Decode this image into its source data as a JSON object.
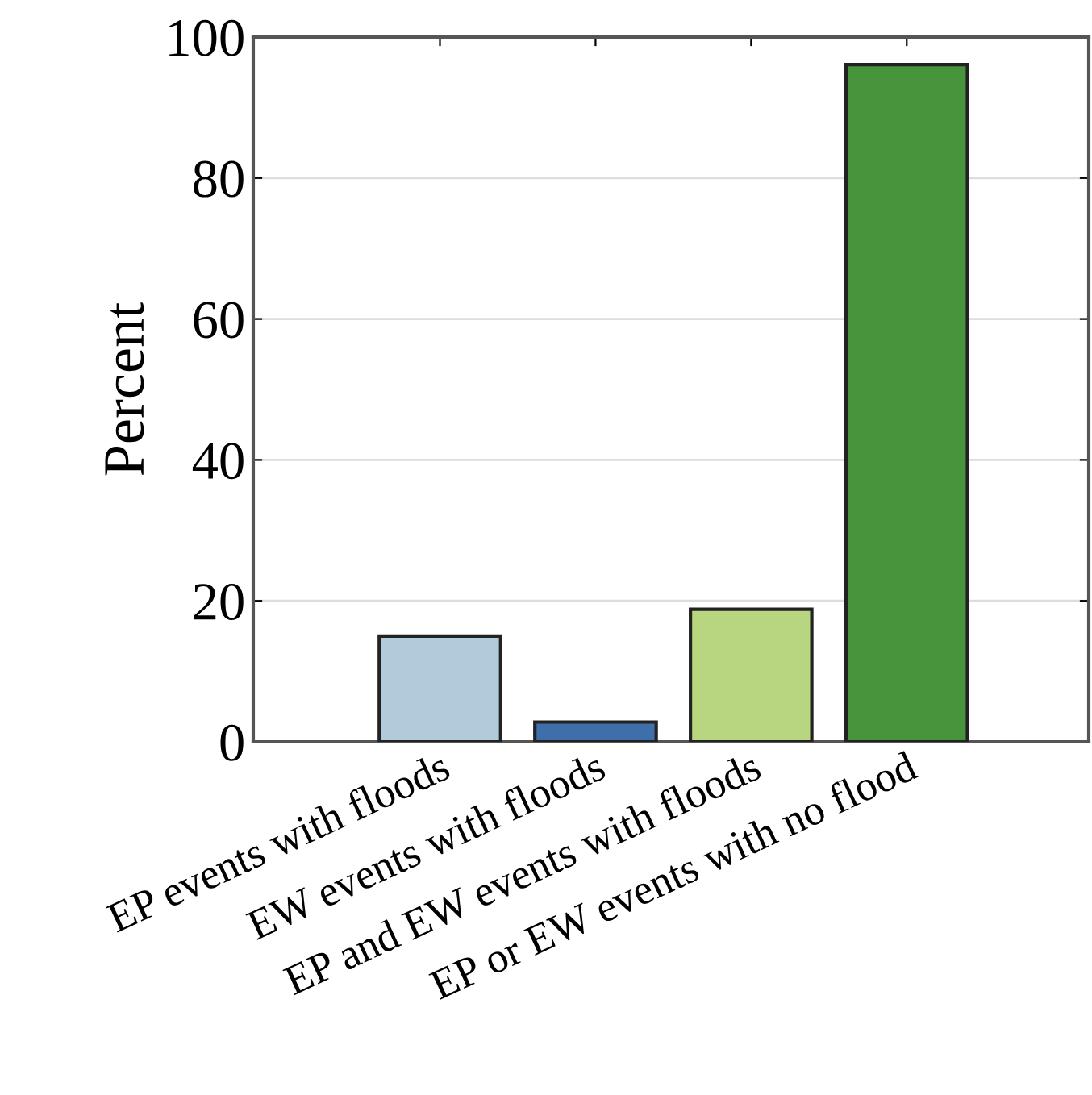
{
  "chart_data": {
    "type": "bar",
    "ylabel": "Percent",
    "categories": [
      "EP events with floods",
      "EW events with floods",
      "EP and EW events with floods",
      "EP or EW events with no flood"
    ],
    "values": [
      15.0,
      2.8,
      18.8,
      96.1
    ],
    "colors": [
      "#b2cbdb",
      "#3f6fab",
      "#b8d57f",
      "#47943c"
    ],
    "ylim": [
      0,
      100
    ],
    "yticks": [
      0,
      20,
      40,
      60,
      80,
      100
    ],
    "grid": "y"
  }
}
